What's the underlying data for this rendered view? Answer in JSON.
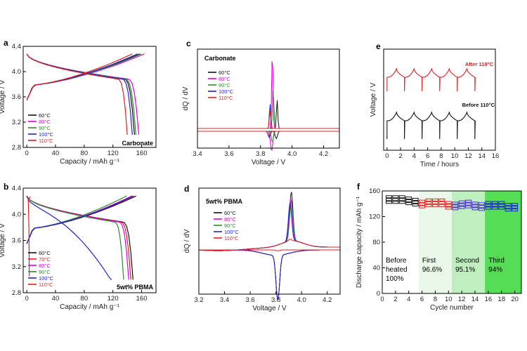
{
  "chart_data": [
    {
      "panel": "a",
      "type": "line",
      "title": "Carbonate",
      "xlabel": "Capacity / mAh g⁻¹",
      "ylabel": "Voltage / V",
      "xlim": [
        -5,
        180
      ],
      "ylim": [
        2.8,
        4.4
      ],
      "xticks": [
        "0",
        "40",
        "80",
        "120",
        "160"
      ],
      "xtick_values": [
        0,
        40,
        80,
        120,
        160
      ],
      "yticks": [
        "2.8",
        "3.2",
        "3.6",
        "4.0",
        "4.4"
      ],
      "ytick_values": [
        2.8,
        3.2,
        3.6,
        4.0,
        4.4
      ],
      "legend": {
        "position": "bottom-left",
        "labels": [
          "60°C",
          "80°C",
          "90°C",
          "100°C",
          "110°C"
        ]
      },
      "series": [
        {
          "name": "60°C",
          "color": "#111111",
          "capacity": 150
        },
        {
          "name": "80°C",
          "color": "#e000e0",
          "capacity": 156
        },
        {
          "name": "90°C",
          "color": "#2e8b2e",
          "capacity": 152
        },
        {
          "name": "100°C",
          "color": "#2020d0",
          "capacity": 147
        },
        {
          "name": "110°C",
          "color": "#e02020",
          "capacity": 140
        }
      ]
    },
    {
      "panel": "b",
      "type": "line",
      "title": "5wt% PBMA",
      "xlabel": "Capacity / mAh g⁻¹",
      "ylabel": "Voltage / V",
      "xlim": [
        -5,
        180
      ],
      "ylim": [
        2.8,
        4.4
      ],
      "xticks": [
        "0",
        "40",
        "80",
        "120",
        "160"
      ],
      "xtick_values": [
        0,
        40,
        80,
        120,
        160
      ],
      "yticks": [
        "2.8",
        "3.2",
        "3.6",
        "4.0",
        "4.4"
      ],
      "ytick_values": [
        2.8,
        3.2,
        3.6,
        4.0,
        4.4
      ],
      "legend": {
        "position": "bottom-left",
        "labels": [
          "60°C",
          "70°C",
          "80°C",
          "90°C",
          "100°C",
          "110°C"
        ]
      },
      "series": [
        {
          "name": "60°C",
          "color": "#111111",
          "capacity": 148
        },
        {
          "name": "70°C",
          "color": "#e02020",
          "capacity": 145
        },
        {
          "name": "80°C",
          "color": "#e000e0",
          "capacity": 142
        },
        {
          "name": "90°C",
          "color": "#2e8b2e",
          "capacity": 135
        },
        {
          "name": "100°C",
          "color": "#2020d0",
          "capacity": 118
        },
        {
          "name": "110°C",
          "color": "#e02020",
          "capacity": 4
        }
      ]
    },
    {
      "panel": "c",
      "type": "line",
      "title": "Carbonate",
      "xlabel": "Voltage / V",
      "ylabel": "dQ / dV",
      "xlim": [
        3.4,
        4.3
      ],
      "xticks": [
        "3.4",
        "3.6",
        "3.8",
        "4.0",
        "4.2"
      ],
      "xtick_values": [
        3.4,
        3.6,
        3.8,
        4.0,
        4.2
      ],
      "legend": {
        "position": "top-left",
        "labels": [
          "60°C",
          "80°C",
          "90°C",
          "100°C",
          "110°C"
        ]
      },
      "series": [
        {
          "name": "60°C",
          "color": "#111111",
          "peak_voltage": 3.905,
          "peak_height": 0.35
        },
        {
          "name": "80°C",
          "color": "#e000e0",
          "peak_voltage": 3.875,
          "peak_height": 0.95
        },
        {
          "name": "90°C",
          "color": "#2e8b2e",
          "peak_voltage": 3.88,
          "peak_height": 0.5
        },
        {
          "name": "100°C",
          "color": "#2020d0",
          "peak_voltage": 3.86,
          "peak_height": 0.3
        },
        {
          "name": "110°C",
          "color": "#e02020",
          "peak_voltage": 3.86,
          "peak_height": 0.22
        }
      ]
    },
    {
      "panel": "d",
      "type": "line",
      "title": "5wt% PBMA",
      "xlabel": "Voltage / V",
      "ylabel": "dQ / dV",
      "xlim": [
        3.2,
        4.3
      ],
      "xticks": [
        "3.2",
        "3.4",
        "3.6",
        "3.8",
        "4.0",
        "4.2"
      ],
      "xtick_values": [
        3.2,
        3.4,
        3.6,
        3.8,
        4.0,
        4.2
      ],
      "legend": {
        "position": "top-left",
        "labels": [
          "60°C",
          "80°C",
          "90°C",
          "100°C",
          "110°C"
        ]
      },
      "series": [
        {
          "name": "60°C",
          "color": "#111111",
          "peak_voltage": 3.92,
          "peak_height": 0.55
        },
        {
          "name": "80°C",
          "color": "#e000e0",
          "peak_voltage": 3.915,
          "peak_height": 0.48
        },
        {
          "name": "90°C",
          "color": "#2e8b2e",
          "peak_voltage": 3.92,
          "peak_height": 0.45
        },
        {
          "name": "100°C",
          "color": "#2020d0",
          "peak_voltage": 3.91,
          "peak_height": 0.42
        },
        {
          "name": "110°C",
          "color": "#e02020",
          "peak_voltage": 3.91,
          "peak_height": 0.02
        }
      ]
    },
    {
      "panel": "e",
      "type": "line",
      "xlabel": "Time / hours",
      "ylabel": "Voltage / V",
      "xlim": [
        -0.5,
        16
      ],
      "xticks": [
        "0",
        "2",
        "4",
        "6",
        "8",
        "10",
        "12",
        "14",
        "16"
      ],
      "xtick_values": [
        0,
        2,
        4,
        6,
        8,
        10,
        12,
        14,
        16
      ],
      "cycle_period_hours": 2.6,
      "cycles": 5,
      "series": [
        {
          "name": "After 110°C",
          "color": "#e02020",
          "label": "After 110°C"
        },
        {
          "name": "Before 110°C",
          "color": "#111111",
          "label": "Before 110°C"
        }
      ]
    },
    {
      "panel": "f",
      "type": "scatter",
      "xlabel": "Cycle number",
      "ylabel": "Discharge capacity / mAh g⁻¹",
      "xlim": [
        0,
        21
      ],
      "ylim": [
        0,
        160
      ],
      "xticks": [
        "0",
        "2",
        "4",
        "6",
        "8",
        "10",
        "12",
        "14",
        "16",
        "18",
        "20"
      ],
      "xtick_values": [
        0,
        2,
        4,
        6,
        8,
        10,
        12,
        14,
        16,
        18,
        20
      ],
      "yticks": [
        "0",
        "40",
        "80",
        "120",
        "160"
      ],
      "ytick_values": [
        0,
        40,
        80,
        120,
        160
      ],
      "regions": [
        {
          "label_lines": [
            "Before",
            "heated",
            "100%"
          ],
          "x_from": 0,
          "x_to": 5.5,
          "color": "#ffffff"
        },
        {
          "label_lines": [
            "First",
            "96.6%"
          ],
          "x_from": 5.5,
          "x_to": 10.5,
          "color": "#e9f8e9"
        },
        {
          "label_lines": [
            "Second",
            "95.1%"
          ],
          "x_from": 10.5,
          "x_to": 15.5,
          "color": "#bfefbf"
        },
        {
          "label_lines": [
            "Third",
            "94%"
          ],
          "x_from": 15.5,
          "x_to": 21,
          "color": "#55dd55"
        }
      ],
      "series": [
        {
          "name": "Before heated",
          "color": "#111111",
          "x": [
            1,
            2,
            3,
            4,
            5
          ],
          "values": [
            146,
            146,
            146,
            144,
            142
          ]
        },
        {
          "name": "First",
          "color": "#e02020",
          "x": [
            6,
            7,
            8,
            9,
            10
          ],
          "values": [
            139,
            141,
            141,
            141,
            137
          ]
        },
        {
          "name": "Second",
          "color": "#4b2bd6",
          "x": [
            11,
            12,
            13,
            14,
            15
          ],
          "values": [
            136,
            138,
            139,
            136,
            135
          ]
        },
        {
          "name": "Third",
          "color": "#2020d0",
          "x": [
            16,
            17,
            18,
            19,
            20
          ],
          "values": [
            137,
            137,
            137,
            134,
            134
          ]
        }
      ]
    }
  ]
}
